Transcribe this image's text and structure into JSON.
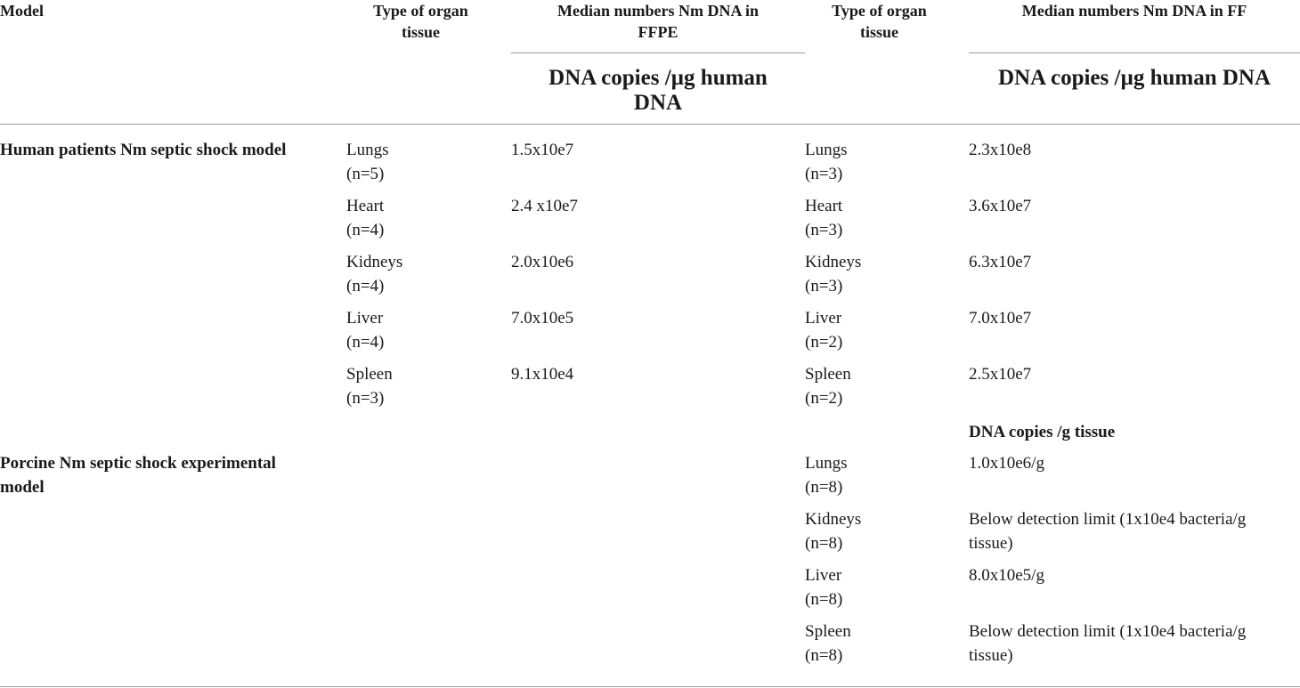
{
  "table": {
    "headers": {
      "model": "Model",
      "organ_type_1": [
        "Type of organ",
        "tissue"
      ],
      "ffpe_title": [
        "Median numbers Nm DNA in",
        "FFPE"
      ],
      "ffpe_unit": [
        "DNA copies /µg human",
        "DNA"
      ],
      "organ_type_2": [
        "Type of organ",
        "tissue"
      ],
      "ff_title": "Median numbers Nm DNA in FF",
      "ff_unit": "DNA copies /µg human DNA"
    },
    "human": {
      "model": "Human patients Nm septic shock model",
      "rows": [
        {
          "organ1": "Lungs",
          "n1": "(n=5)",
          "ffpe": "1.5x10e7",
          "organ2": "Lungs",
          "n2": "(n=3)",
          "ff": "2.3x10e8"
        },
        {
          "organ1": "Heart",
          "n1": "(n=4)",
          "ffpe": "2.4 x10e7",
          "organ2": "Heart",
          "n2": "(n=3)",
          "ff": "3.6x10e7"
        },
        {
          "organ1": "Kidneys",
          "n1": "(n=4)",
          "ffpe": "2.0x10e6",
          "organ2": "Kidneys",
          "n2": "(n=3)",
          "ff": "6.3x10e7"
        },
        {
          "organ1": "Liver",
          "n1": "(n=4)",
          "ffpe": "7.0x10e5",
          "organ2": "Liver",
          "n2": "(n=2)",
          "ff": "7.0x10e7"
        },
        {
          "organ1": "Spleen",
          "n1": "(n=3)",
          "ffpe": "9.1x10e4",
          "organ2": "Spleen",
          "n2": "(n=2)",
          "ff": "2.5x10e7"
        }
      ]
    },
    "porcine": {
      "unit_label": "DNA copies /g tissue",
      "model": [
        "Porcine Nm septic shock experimental",
        "model"
      ],
      "rows": [
        {
          "organ": "Lungs",
          "n": "(n=8)",
          "ff": [
            "1.0x10e6/g",
            ""
          ]
        },
        {
          "organ": "Kidneys",
          "n": "(n=8)",
          "ff": [
            "Below detection limit (1x10e4 bacteria/g",
            "tissue)"
          ]
        },
        {
          "organ": "Liver",
          "n": "(n=8)",
          "ff": [
            "8.0x10e5/g",
            ""
          ]
        },
        {
          "organ": "Spleen",
          "n": "(n=8)",
          "ff": [
            "Below detection limit (1x10e4 bacteria/g",
            "tissue)"
          ]
        }
      ]
    }
  }
}
